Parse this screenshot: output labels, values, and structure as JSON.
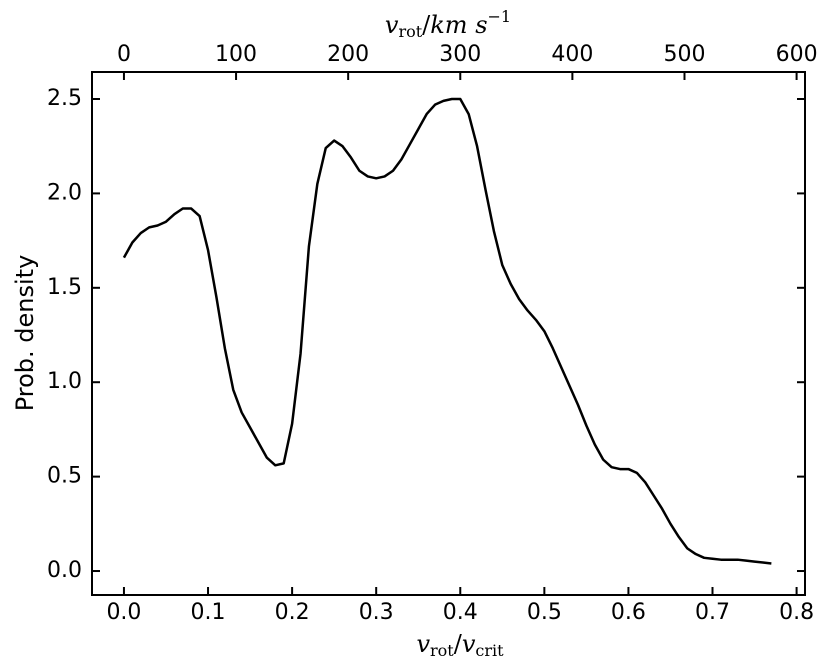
{
  "chart_data": {
    "type": "line",
    "xlabel": [
      "v",
      "rot",
      "/",
      "v",
      "crit"
    ],
    "ylabel": "Prob. density",
    "top_xlabel": [
      "v",
      "rot",
      "/",
      "km s",
      "−1"
    ],
    "color": "#000000",
    "x": [
      0.0,
      0.01,
      0.02,
      0.03,
      0.04,
      0.05,
      0.06,
      0.07,
      0.08,
      0.09,
      0.1,
      0.11,
      0.12,
      0.13,
      0.14,
      0.15,
      0.16,
      0.17,
      0.18,
      0.19,
      0.2,
      0.21,
      0.22,
      0.23,
      0.24,
      0.25,
      0.26,
      0.27,
      0.28,
      0.29,
      0.3,
      0.31,
      0.32,
      0.33,
      0.34,
      0.35,
      0.36,
      0.37,
      0.38,
      0.39,
      0.4,
      0.41,
      0.42,
      0.43,
      0.44,
      0.45,
      0.46,
      0.47,
      0.48,
      0.49,
      0.5,
      0.51,
      0.52,
      0.53,
      0.54,
      0.55,
      0.56,
      0.57,
      0.58,
      0.59,
      0.6,
      0.61,
      0.62,
      0.63,
      0.64,
      0.65,
      0.66,
      0.67,
      0.68,
      0.69,
      0.7,
      0.71,
      0.72,
      0.73,
      0.74,
      0.75,
      0.76,
      0.77
    ],
    "values": [
      1.66,
      1.74,
      1.79,
      1.82,
      1.83,
      1.85,
      1.89,
      1.92,
      1.92,
      1.88,
      1.7,
      1.45,
      1.18,
      0.96,
      0.84,
      0.76,
      0.68,
      0.6,
      0.56,
      0.57,
      0.78,
      1.15,
      1.72,
      2.05,
      2.24,
      2.28,
      2.25,
      2.19,
      2.12,
      2.09,
      2.08,
      2.09,
      2.12,
      2.18,
      2.26,
      2.34,
      2.42,
      2.47,
      2.49,
      2.5,
      2.5,
      2.42,
      2.25,
      2.02,
      1.8,
      1.62,
      1.52,
      1.44,
      1.38,
      1.33,
      1.27,
      1.18,
      1.08,
      0.98,
      0.88,
      0.77,
      0.67,
      0.59,
      0.55,
      0.54,
      0.54,
      0.52,
      0.47,
      0.4,
      0.33,
      0.25,
      0.18,
      0.12,
      0.09,
      0.07,
      0.065,
      0.06,
      0.06,
      0.06,
      0.055,
      0.05,
      0.045,
      0.04
    ],
    "xlim": [
      -0.038,
      0.81
    ],
    "xticks": [
      {
        "value": 0,
        "label": "0.0"
      },
      0.1,
      0.2,
      0.3,
      0.4,
      0.5,
      0.6,
      0.7,
      0.8
    ],
    "ylim": [
      -0.127,
      2.643
    ],
    "yticks": [
      {
        "value": 0,
        "label": "0.0"
      },
      0.5,
      {
        "value": 1,
        "label": "1.0"
      },
      1.5,
      {
        "value": 2,
        "label": "2.0"
      },
      2.5
    ],
    "top_xlim": [
      -28.5,
      607.5
    ],
    "top_xticks": [
      0,
      100,
      200,
      300,
      400,
      500,
      600
    ]
  }
}
